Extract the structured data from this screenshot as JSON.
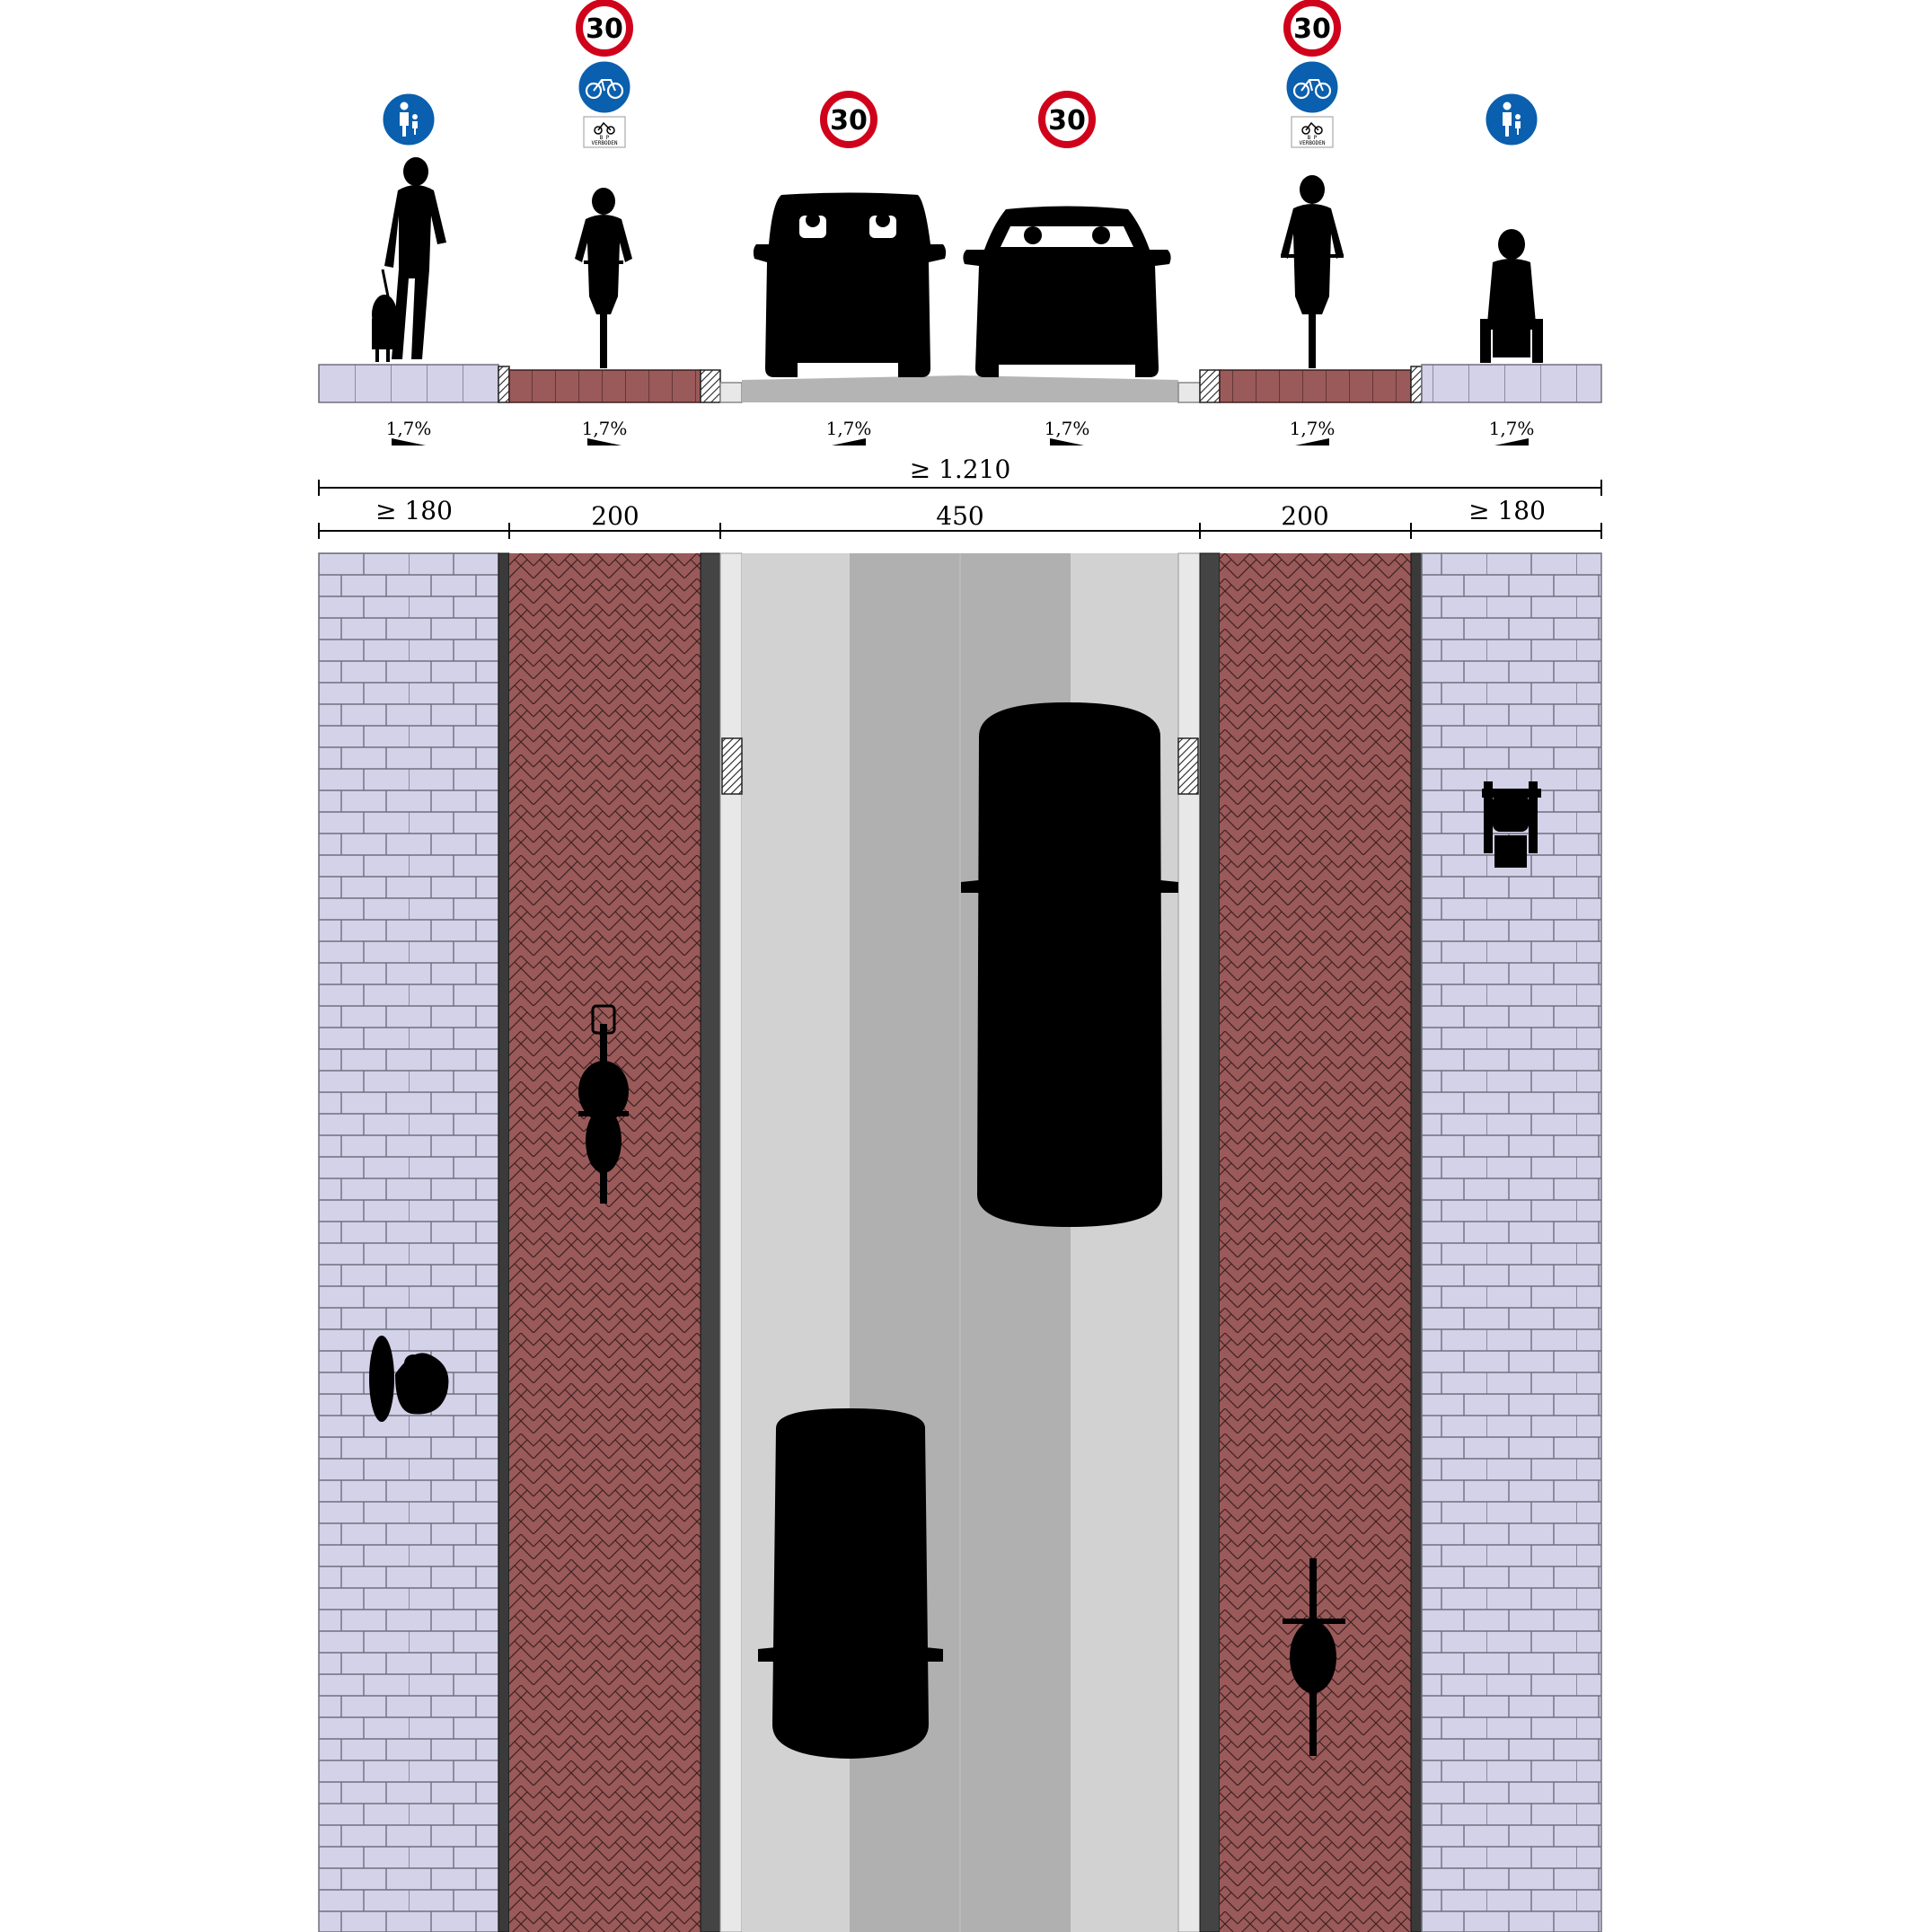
{
  "colors": {
    "sidewalk": "#d3d2e8",
    "sidewalk_joint": "#6f6f7f",
    "bike_path": "#9a5a59",
    "bike_joint": "#3c2020",
    "curb_dark": "#2b2b2b",
    "road_light": "#d2d2d2",
    "road_dark": "#b0b0b0",
    "gutter": "#e8e8e8",
    "sign_red": "#d0021b",
    "sign_blue": "#0a5fae",
    "silhouette": "#000000"
  },
  "dimensions": {
    "total": "≥ 1.210",
    "segments": [
      "≥ 180",
      "200",
      "450",
      "200",
      "≥ 180"
    ]
  },
  "slopes": [
    "1,7%",
    "1,7%",
    "1,7%",
    "1,7%",
    "1,7%",
    "1,7%"
  ],
  "signs": {
    "speed_limit": "30",
    "moped_plate": "VERBODEN",
    "moped_plate_small": "B P"
  },
  "elevation_items": [
    {
      "name": "pedestrian-with-dog",
      "sign": "pedestrian-sign-icon"
    },
    {
      "name": "cyclist-left",
      "sign": "bicycle-sign-icon"
    },
    {
      "name": "car-front",
      "sign": "speed-30-sign"
    },
    {
      "name": "car-rear",
      "sign": "speed-30-sign"
    },
    {
      "name": "cyclist-right",
      "sign": "bicycle-sign-icon"
    },
    {
      "name": "wheelchair-user",
      "sign": "pedestrian-sign-icon"
    }
  ]
}
